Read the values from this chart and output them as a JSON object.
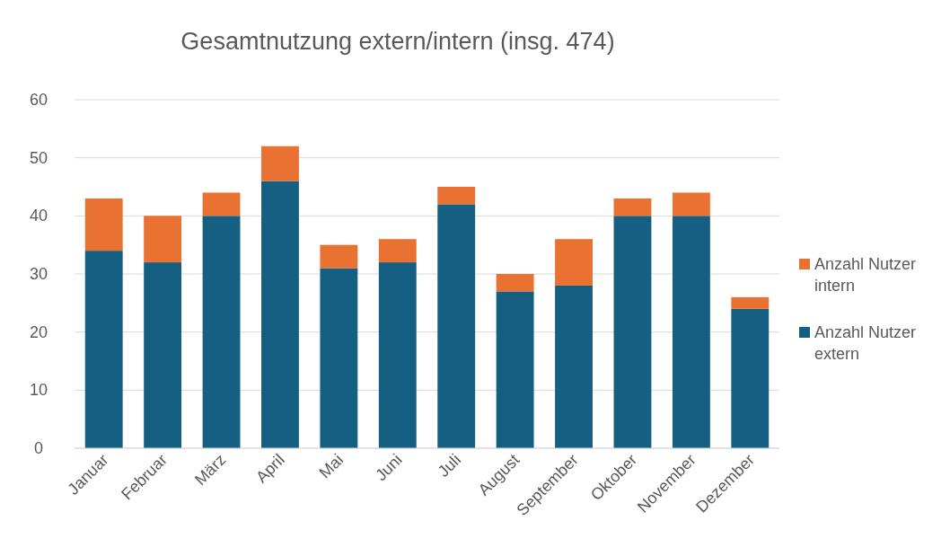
{
  "chart_data": {
    "type": "bar",
    "title": "Gesamtnutzung extern/intern (insg. 474)",
    "categories": [
      "Januar",
      "Februar",
      "März",
      "April",
      "Mai",
      "Juni",
      "Juli",
      "August",
      "September",
      "Oktober",
      "November",
      "Dezember"
    ],
    "stacked": true,
    "ylim": [
      0,
      60
    ],
    "yticks": [
      0,
      10,
      20,
      30,
      40,
      50,
      60
    ],
    "grid": "y",
    "legend": "right",
    "series": [
      {
        "name": "Anzahl Nutzer extern",
        "color": "#156082",
        "values": [
          34,
          32,
          40,
          46,
          31,
          32,
          42,
          27,
          28,
          40,
          40,
          24
        ]
      },
      {
        "name": "Anzahl Nutzer intern",
        "color": "#e97132",
        "values": [
          9,
          8,
          4,
          6,
          4,
          4,
          3,
          3,
          8,
          3,
          4,
          2
        ]
      }
    ]
  }
}
